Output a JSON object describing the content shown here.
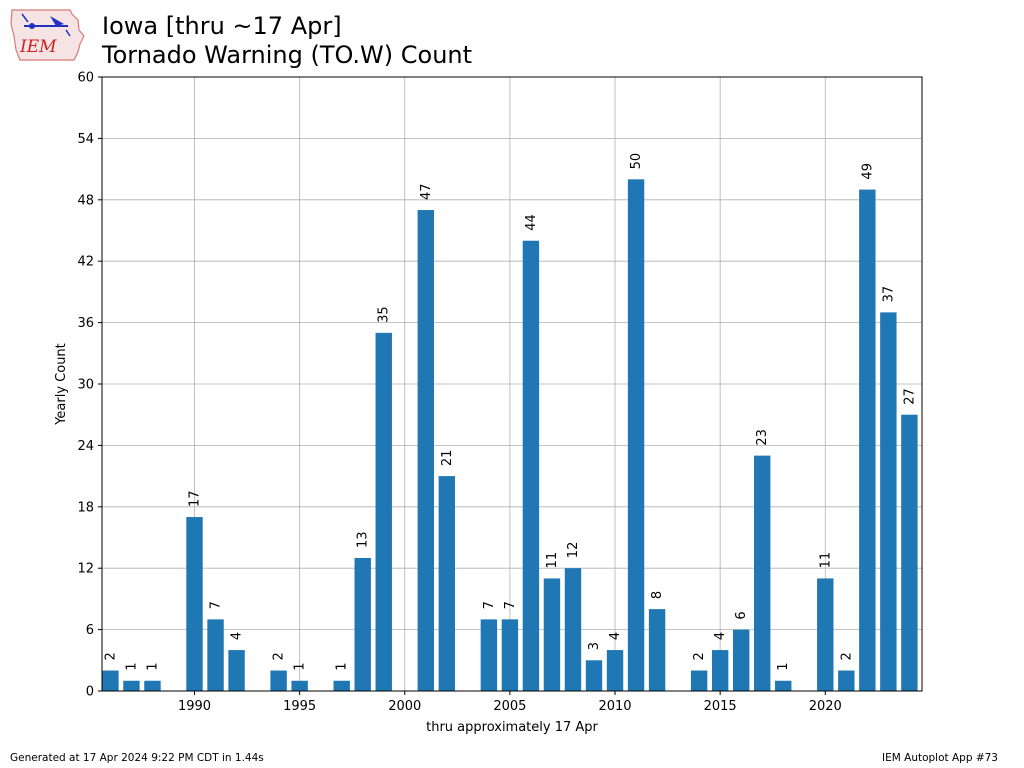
{
  "logo": {
    "text": "IEM"
  },
  "header": {
    "title_line1": "Iowa [thru ~17 Apr]",
    "title_line2": "Tornado Warning (TO.W) Count"
  },
  "footer": {
    "left": "Generated at 17 Apr 2024 9:22 PM CDT in 1.44s",
    "right": "IEM Autoplot App #73"
  },
  "colors": {
    "bar": "#1f77b4",
    "grid": "#b0b0b0",
    "axis": "#000000"
  },
  "chart_data": {
    "type": "bar",
    "xlabel": "thru approximately 17 Apr",
    "ylabel": "Yearly Count",
    "ylim": [
      0,
      60
    ],
    "xlim": [
      1985.6,
      2024.6
    ],
    "yticks": [
      0,
      6,
      12,
      18,
      24,
      30,
      36,
      42,
      48,
      54,
      60
    ],
    "xticks": [
      1990,
      1995,
      2000,
      2005,
      2010,
      2015,
      2020
    ],
    "grid": true,
    "bar_labels": true,
    "data": [
      {
        "year": 1986,
        "value": 2
      },
      {
        "year": 1987,
        "value": 1
      },
      {
        "year": 1988,
        "value": 1
      },
      {
        "year": 1990,
        "value": 17
      },
      {
        "year": 1991,
        "value": 7
      },
      {
        "year": 1992,
        "value": 4
      },
      {
        "year": 1994,
        "value": 2
      },
      {
        "year": 1995,
        "value": 1
      },
      {
        "year": 1997,
        "value": 1
      },
      {
        "year": 1998,
        "value": 13
      },
      {
        "year": 1999,
        "value": 35
      },
      {
        "year": 2001,
        "value": 47
      },
      {
        "year": 2002,
        "value": 21
      },
      {
        "year": 2004,
        "value": 7
      },
      {
        "year": 2005,
        "value": 7
      },
      {
        "year": 2006,
        "value": 44
      },
      {
        "year": 2007,
        "value": 11
      },
      {
        "year": 2008,
        "value": 12
      },
      {
        "year": 2009,
        "value": 3
      },
      {
        "year": 2010,
        "value": 4
      },
      {
        "year": 2011,
        "value": 50
      },
      {
        "year": 2012,
        "value": 8
      },
      {
        "year": 2014,
        "value": 2
      },
      {
        "year": 2015,
        "value": 4
      },
      {
        "year": 2016,
        "value": 6
      },
      {
        "year": 2017,
        "value": 23
      },
      {
        "year": 2018,
        "value": 1
      },
      {
        "year": 2020,
        "value": 11
      },
      {
        "year": 2021,
        "value": 2
      },
      {
        "year": 2022,
        "value": 49
      },
      {
        "year": 2023,
        "value": 37
      },
      {
        "year": 2024,
        "value": 27
      }
    ]
  }
}
